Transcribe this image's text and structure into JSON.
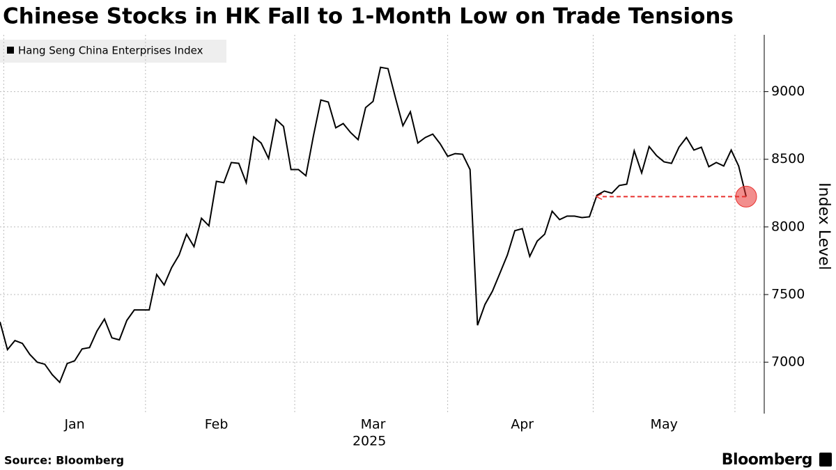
{
  "chart_data": {
    "type": "line",
    "title": "Chinese Stocks in HK Fall to 1-Month Low on Trade Tensions",
    "x_label": "2025",
    "y_label": "Index Level",
    "source": "Source: Bloomberg",
    "brand": "Bloomberg",
    "categories": [
      null,
      null,
      null,
      null,
      null,
      null,
      null,
      null,
      null,
      null,
      "Jan",
      null,
      null,
      null,
      null,
      null,
      null,
      null,
      null,
      null,
      null,
      null,
      null,
      null,
      null,
      null,
      null,
      null,
      null,
      "Feb",
      null,
      null,
      null,
      null,
      null,
      null,
      null,
      null,
      null,
      null,
      null,
      null,
      null,
      null,
      null,
      null,
      null,
      null,
      null,
      null,
      "Mar",
      null,
      null,
      null,
      null,
      null,
      null,
      null,
      null,
      null,
      null,
      null,
      null,
      null,
      null,
      null,
      null,
      null,
      null,
      null,
      "Apr",
      null,
      null,
      null,
      null,
      null,
      null,
      null,
      null,
      null,
      null,
      null,
      null,
      null,
      null,
      null,
      null,
      null,
      null,
      "May",
      null,
      null,
      null,
      null,
      null,
      null,
      null,
      null,
      null,
      null,
      null
    ],
    "series": [
      {
        "name": "Hang Seng China Enterprises Index",
        "color": "#000000",
        "values": [
          7298,
          7093,
          7160,
          7139,
          7057,
          7000,
          6985,
          6908,
          6851,
          6990,
          7010,
          7098,
          7108,
          7231,
          7319,
          7180,
          7165,
          7309,
          7386,
          7386,
          7386,
          7648,
          7571,
          7699,
          7792,
          7946,
          7854,
          8064,
          8008,
          8337,
          8327,
          8476,
          8470,
          8327,
          8666,
          8620,
          8506,
          8794,
          8743,
          8424,
          8424,
          8378,
          8671,
          8938,
          8923,
          8733,
          8764,
          8697,
          8645,
          8882,
          8928,
          9180,
          9170,
          8954,
          8748,
          8851,
          8620,
          8661,
          8686,
          8614,
          8522,
          8542,
          8537,
          8424,
          7273,
          7427,
          7525,
          7658,
          7792,
          7972,
          7987,
          7782,
          7895,
          7946,
          8116,
          8054,
          8080,
          8080,
          8069,
          8075,
          8234,
          8265,
          8249,
          8306,
          8316,
          8563,
          8399,
          8594,
          8527,
          8481,
          8470,
          8589,
          8661,
          8568,
          8589,
          8445,
          8476,
          8450,
          8568,
          8450,
          8224
        ]
      }
    ],
    "highlight_color": "#e8312f",
    "ylim": [
      6620,
      9420
    ],
    "yticks": [
      7000,
      7500,
      8000,
      8500,
      9000
    ],
    "grid": true,
    "legend": "top-left"
  }
}
